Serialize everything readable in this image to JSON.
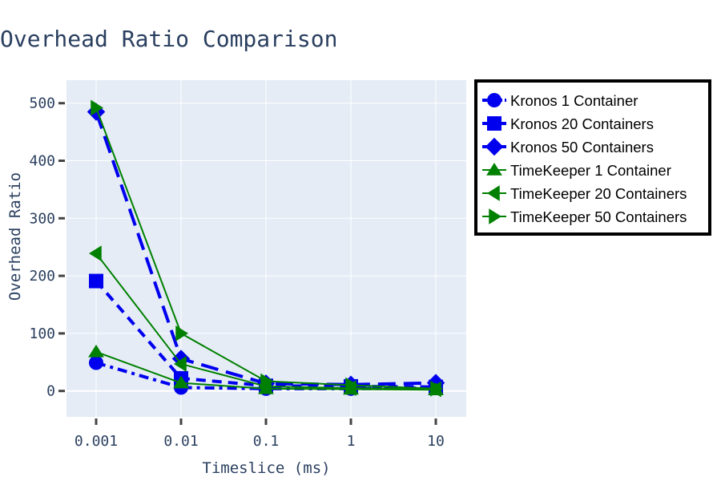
{
  "chart_data": {
    "type": "line",
    "title": "Overhead Ratio Comparison",
    "xlabel": "Timeslice (ms)",
    "ylabel": "Overhead Ratio",
    "x_scale": "log",
    "categories": [
      "0.001",
      "0.01",
      "0.1",
      "1",
      "10"
    ],
    "x": [
      0.001,
      0.01,
      0.1,
      1,
      10
    ],
    "ylim": [
      -45,
      540
    ],
    "yticks": [
      0,
      100,
      200,
      300,
      400,
      500
    ],
    "grid": true,
    "legend_position": "right",
    "series": [
      {
        "name": "Kronos 1 Container",
        "values": [
          49,
          6,
          4,
          4,
          5
        ],
        "color": "#0000ee",
        "marker": "circle",
        "dash": "dashdot"
      },
      {
        "name": "Kronos 20 Containers",
        "values": [
          191,
          22,
          9,
          8,
          7
        ],
        "color": "#0000ee",
        "marker": "square",
        "dash": "dash"
      },
      {
        "name": "Kronos 50 Containers",
        "values": [
          485,
          56,
          13,
          11,
          14
        ],
        "color": "#0000ee",
        "marker": "diamond",
        "dash": "longdash"
      },
      {
        "name": "TimeKeeper 1 Container",
        "values": [
          68,
          14,
          4,
          3,
          2
        ],
        "color": "#008000",
        "marker": "triangle-up",
        "dash": "solid"
      },
      {
        "name": "TimeKeeper 20 Containers",
        "values": [
          239,
          47,
          8,
          5,
          3
        ],
        "color": "#008000",
        "marker": "triangle-left",
        "dash": "solid"
      },
      {
        "name": "TimeKeeper 50 Containers",
        "values": [
          492,
          100,
          17,
          10,
          4
        ],
        "color": "#008000",
        "marker": "triangle-right",
        "dash": "solid"
      }
    ]
  }
}
